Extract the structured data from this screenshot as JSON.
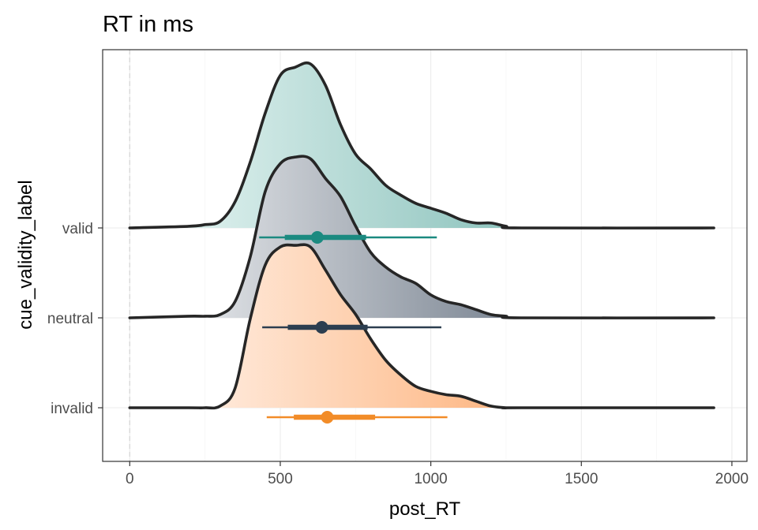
{
  "chart_data": {
    "type": "ridgeline",
    "title": "RT in ms",
    "xlabel": "post_RT",
    "ylabel": "cue_validity_label",
    "xlim": [
      -90,
      2050
    ],
    "x_ticks": [
      0,
      500,
      1000,
      1500,
      2000
    ],
    "x_tick_labels": [
      "0",
      "500",
      "1000",
      "1500",
      "2000"
    ],
    "categories": [
      "invalid",
      "neutral",
      "valid"
    ],
    "grid": true,
    "reference_line_x": 0,
    "density_x": [
      0,
      195,
      250,
      300,
      350,
      400,
      450,
      500,
      550,
      600,
      650,
      700,
      750,
      800,
      850,
      900,
      950,
      1000,
      1050,
      1100,
      1150,
      1200,
      1250,
      1300,
      1940
    ],
    "series": [
      {
        "name": "valid",
        "color": "#1b8a80",
        "fill_light": "#d6ece9",
        "fill_dark": "#8fc4be",
        "density": [
          0,
          0.01,
          0.02,
          0.04,
          0.16,
          0.4,
          0.7,
          0.93,
          0.98,
          1.0,
          0.87,
          0.63,
          0.45,
          0.36,
          0.26,
          0.2,
          0.15,
          0.12,
          0.09,
          0.05,
          0.03,
          0.03,
          0.01,
          0,
          0
        ],
        "median": 623,
        "interval_66": [
          515,
          785
        ],
        "interval_95": [
          430,
          1020
        ]
      },
      {
        "name": "neutral",
        "color": "#2c3e50",
        "fill_light": "#dadde1",
        "fill_dark": "#7e8895",
        "density": [
          0,
          0.01,
          0.01,
          0.02,
          0.1,
          0.37,
          0.77,
          0.94,
          0.98,
          0.97,
          0.85,
          0.74,
          0.56,
          0.4,
          0.31,
          0.25,
          0.21,
          0.14,
          0.1,
          0.08,
          0.05,
          0.02,
          0.01,
          0,
          0
        ],
        "median": 638,
        "interval_66": [
          525,
          790
        ],
        "interval_95": [
          440,
          1035
        ]
      },
      {
        "name": "invalid",
        "color": "#f28c28",
        "fill_light": "#ffe8d8",
        "fill_dark": "#fdb682",
        "density": [
          0,
          0,
          0,
          0.01,
          0.12,
          0.54,
          0.87,
          0.98,
          0.99,
          0.98,
          0.84,
          0.69,
          0.57,
          0.42,
          0.29,
          0.2,
          0.13,
          0.1,
          0.08,
          0.07,
          0.04,
          0.01,
          0,
          0,
          0
        ],
        "median": 656,
        "interval_66": [
          545,
          815
        ],
        "interval_95": [
          455,
          1055
        ]
      }
    ]
  }
}
